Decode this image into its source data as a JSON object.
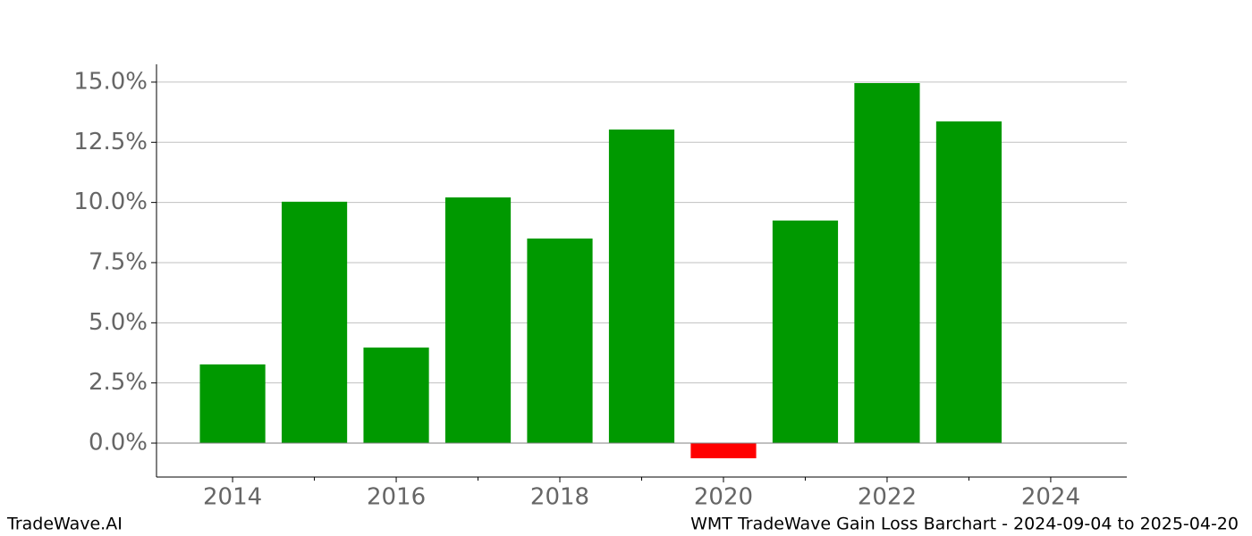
{
  "chart_data": {
    "type": "bar",
    "title": "WMT TradeWave Gain Loss Barchart - 2024-09-04 to 2025-04-20",
    "brand": "TradeWave.AI",
    "x": [
      2014,
      2015,
      2016,
      2017,
      2018,
      2019,
      2020,
      2021,
      2022,
      2023
    ],
    "values": [
      3.27,
      10.03,
      3.97,
      10.21,
      8.5,
      13.03,
      -0.63,
      9.25,
      14.96,
      13.37
    ],
    "positive_color": "#009900",
    "negative_color": "#ff0000",
    "xlim": [
      2013.07,
      2024.93
    ],
    "xticks": [
      2014,
      2016,
      2018,
      2020,
      2022,
      2024
    ],
    "xminorticks": [
      2015,
      2017,
      2019,
      2021,
      2023
    ],
    "ylim": [
      -1.41,
      15.74
    ],
    "yticks": [
      {
        "value": 0,
        "label": "0.0%"
      },
      {
        "value": 2.5,
        "label": "2.5%"
      },
      {
        "value": 5,
        "label": "5.0%"
      },
      {
        "value": 7.5,
        "label": "7.5%"
      },
      {
        "value": 10,
        "label": "10.0%"
      },
      {
        "value": 12.5,
        "label": "12.5%"
      },
      {
        "value": 15,
        "label": "15.0%"
      }
    ],
    "grid": true
  }
}
